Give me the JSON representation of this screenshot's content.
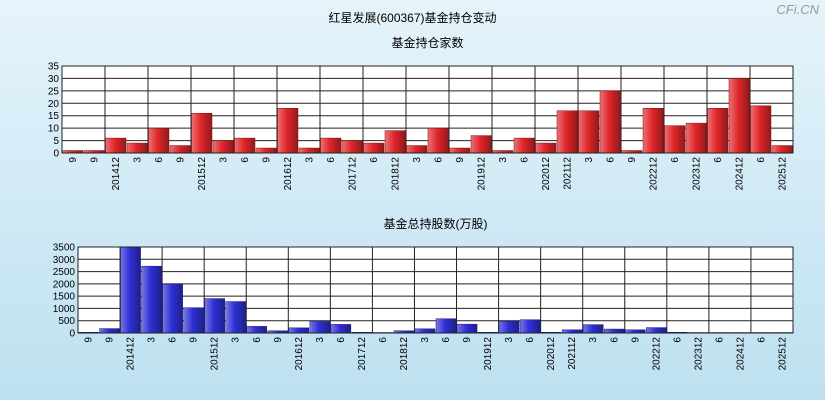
{
  "title": "红星发展(600367)基金持仓变动",
  "watermark": "CFi.CN",
  "chart_data": [
    {
      "type": "bar",
      "title": "基金持仓家数",
      "ylim": [
        0,
        35
      ],
      "yticks": [
        0,
        5,
        10,
        15,
        20,
        25,
        30,
        35
      ],
      "color": "#e0262a",
      "grid": true,
      "categories": [
        "9",
        "9",
        "201412",
        "3",
        "6",
        "9",
        "201512",
        "3",
        "6",
        "9",
        "201612",
        "3",
        "6",
        "201712",
        "6",
        "201812",
        "3",
        "6",
        "9",
        "201912",
        "3",
        "6",
        "202012",
        "202112",
        "3",
        "6",
        "9",
        "202212",
        "6",
        "202312",
        "6",
        "202412",
        "6",
        "202512"
      ],
      "values": [
        1,
        1,
        6,
        4,
        10,
        3,
        16,
        5,
        6,
        2,
        18,
        2,
        6,
        5,
        4,
        9,
        3,
        10,
        2,
        7,
        1,
        6,
        4,
        17,
        17,
        25,
        1,
        18,
        11,
        12,
        18,
        30,
        19,
        3
      ]
    },
    {
      "type": "bar",
      "title": "基金总持股数(万股)",
      "ylim": [
        0,
        3500
      ],
      "yticks": [
        0,
        500,
        1000,
        1500,
        2000,
        2500,
        3000,
        3500
      ],
      "color": "#2f2fd6",
      "grid": true,
      "categories": [
        "9",
        "9",
        "201412",
        "3",
        "6",
        "9",
        "201512",
        "3",
        "6",
        "9",
        "201612",
        "3",
        "6",
        "201712",
        "6",
        "201812",
        "3",
        "6",
        "9",
        "201912",
        "3",
        "6",
        "202012",
        "202112",
        "3",
        "6",
        "9",
        "202212",
        "6",
        "202312",
        "6",
        "202412",
        "6",
        "202512"
      ],
      "values": [
        30,
        180,
        3500,
        2720,
        1990,
        1030,
        1400,
        1280,
        270,
        90,
        210,
        470,
        350,
        30,
        20,
        90,
        170,
        580,
        360,
        30,
        480,
        540,
        30,
        130,
        340,
        160,
        130,
        220,
        30,
        20,
        20,
        20,
        20,
        20
      ]
    }
  ]
}
